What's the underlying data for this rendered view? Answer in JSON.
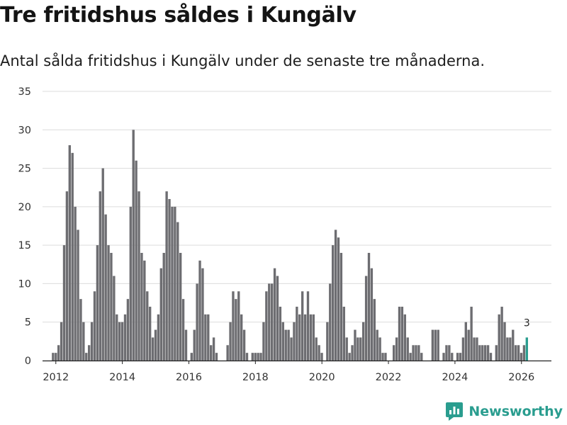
{
  "header": {
    "title": "Tre fritidshus såldes i Kungälv",
    "subtitle": "Antal sålda fritidshus i Kungälv under de senaste tre månaderna."
  },
  "brand": {
    "name": "Newsworthy",
    "icon": "newsworthy-logo-icon"
  },
  "colors": {
    "bar": "#6d6d71",
    "highlight": "#2a9d8f",
    "grid": "#dcdcdc",
    "brand": "#2a9d8f"
  },
  "chart_data": {
    "type": "bar",
    "title": "Tre fritidshus såldes i Kungälv",
    "subtitle": "Antal sålda fritidshus i Kungälv under de senaste tre månaderna.",
    "xlabel": "",
    "ylabel": "",
    "ylim": [
      0,
      35
    ],
    "yticks": [
      0,
      5,
      10,
      15,
      20,
      25,
      30,
      35
    ],
    "xlim": [
      2011.6,
      2026.9
    ],
    "xticks": [
      2012,
      2014,
      2016,
      2018,
      2020,
      2022,
      2024,
      2026
    ],
    "x_start": 2011.75,
    "x_step": 0.0833,
    "grid": true,
    "legend": "none",
    "values": [
      0,
      0,
      1,
      1,
      2,
      5,
      15,
      22,
      28,
      27,
      20,
      17,
      8,
      5,
      1,
      2,
      5,
      9,
      15,
      22,
      25,
      19,
      15,
      14,
      11,
      6,
      5,
      5,
      6,
      8,
      20,
      30,
      26,
      22,
      14,
      13,
      9,
      7,
      3,
      4,
      6,
      12,
      14,
      22,
      21,
      20,
      20,
      18,
      14,
      8,
      4,
      0,
      1,
      4,
      10,
      13,
      12,
      6,
      6,
      2,
      3,
      1,
      0,
      0,
      0,
      2,
      5,
      9,
      8,
      9,
      6,
      4,
      1,
      0,
      1,
      1,
      1,
      1,
      5,
      9,
      10,
      10,
      12,
      11,
      7,
      5,
      4,
      4,
      3,
      5,
      7,
      6,
      9,
      6,
      9,
      6,
      6,
      3,
      2,
      1,
      0,
      5,
      10,
      15,
      17,
      16,
      14,
      7,
      3,
      1,
      2,
      4,
      3,
      3,
      5,
      11,
      14,
      12,
      8,
      4,
      3,
      1,
      1,
      0,
      0,
      2,
      3,
      7,
      7,
      6,
      3,
      1,
      2,
      2,
      2,
      1,
      0,
      0,
      0,
      4,
      4,
      4,
      0,
      1,
      2,
      2,
      1,
      0,
      1,
      1,
      3,
      5,
      4,
      7,
      3,
      3,
      2,
      2,
      2,
      2,
      1,
      0,
      2,
      6,
      7,
      5,
      3,
      3,
      4,
      2,
      2,
      1,
      2,
      3
    ],
    "highlight_last": true,
    "annotation": {
      "text": "3"
    }
  }
}
